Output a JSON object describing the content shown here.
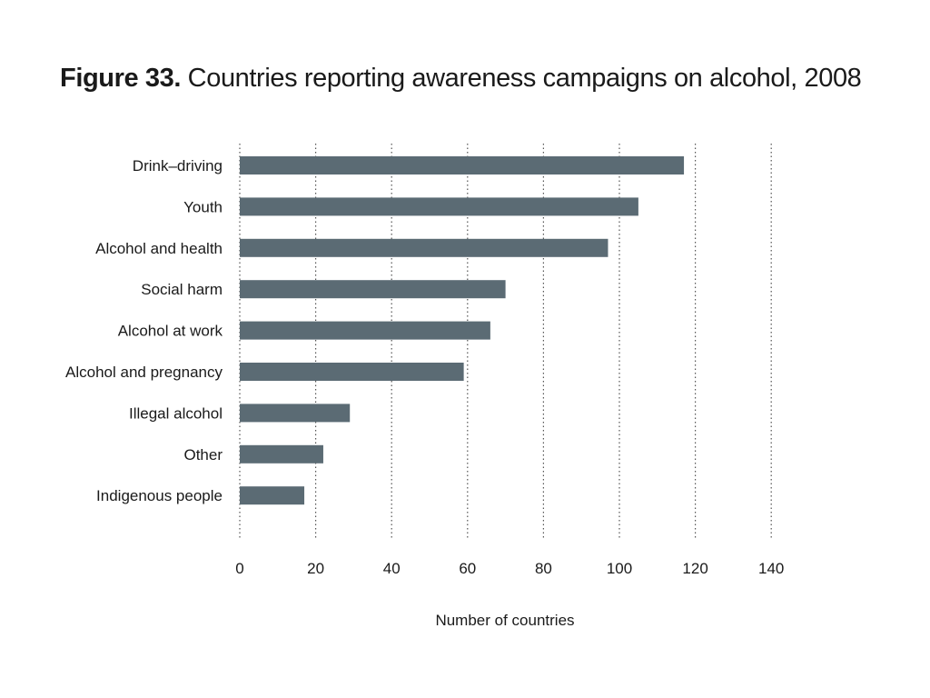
{
  "figure": {
    "label": "Figure 33.",
    "title": "Countries reporting awareness campaigns on alcohol, 2008"
  },
  "colors": {
    "bar": "#5b6b74",
    "grid": "#555555",
    "text": "#1a1a1a"
  },
  "chart_data": {
    "type": "bar",
    "orientation": "horizontal",
    "title": "Countries reporting awareness campaigns on alcohol, 2008",
    "xlabel": "Number of countries",
    "ylabel": "",
    "categories": [
      "Drink–driving",
      "Youth",
      "Alcohol and health",
      "Social harm",
      "Alcohol at work",
      "Alcohol and pregnancy",
      "Illegal alcohol",
      "Other",
      "Indigenous people"
    ],
    "values": [
      117,
      105,
      97,
      70,
      66,
      59,
      29,
      22,
      17
    ],
    "xlim": [
      0,
      140
    ],
    "xticks": [
      0,
      20,
      40,
      60,
      80,
      100,
      120,
      140
    ],
    "grid": "vertical dotted",
    "legend": "none"
  }
}
